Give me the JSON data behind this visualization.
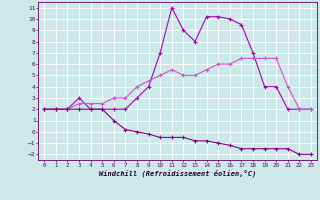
{
  "xlabel": "Windchill (Refroidissement éolien,°C)",
  "hours": [
    0,
    1,
    2,
    3,
    4,
    5,
    6,
    7,
    8,
    9,
    10,
    11,
    12,
    13,
    14,
    15,
    16,
    17,
    18,
    19,
    20,
    21,
    22,
    23
  ],
  "line1": [
    2,
    2,
    2,
    3,
    2,
    2,
    2,
    2,
    3,
    4,
    7,
    11,
    9,
    8,
    10.2,
    10.2,
    10,
    9.5,
    7,
    4,
    4,
    2,
    2,
    2
  ],
  "line2": [
    2,
    2,
    2,
    2.5,
    2.5,
    2.5,
    3,
    3,
    4,
    4.5,
    5,
    5.5,
    5,
    5,
    5.5,
    6,
    6,
    6.5,
    6.5,
    6.5,
    6.5,
    4,
    2,
    2
  ],
  "line3": [
    2,
    2,
    2,
    2,
    2,
    2,
    1,
    0.2,
    0,
    -0.2,
    -0.5,
    -0.5,
    -0.5,
    -0.8,
    -0.8,
    -1,
    -1.2,
    -1.5,
    -1.5,
    -1.5,
    -1.5,
    -1.5,
    -2,
    -2
  ],
  "bg_color": "#cce8e8",
  "line_color1": "#aa00bb",
  "line_color2": "#cc55cc",
  "line_color3": "#880088",
  "grid_color": "#ffffff",
  "ylim": [
    -2.5,
    11.5
  ],
  "yticks": [
    -2,
    -1,
    0,
    1,
    2,
    3,
    4,
    5,
    6,
    7,
    8,
    9,
    10,
    11
  ],
  "xticks": [
    0,
    1,
    2,
    3,
    4,
    5,
    6,
    7,
    8,
    9,
    10,
    11,
    12,
    13,
    14,
    15,
    16,
    17,
    18,
    19,
    20,
    21,
    22,
    23
  ]
}
